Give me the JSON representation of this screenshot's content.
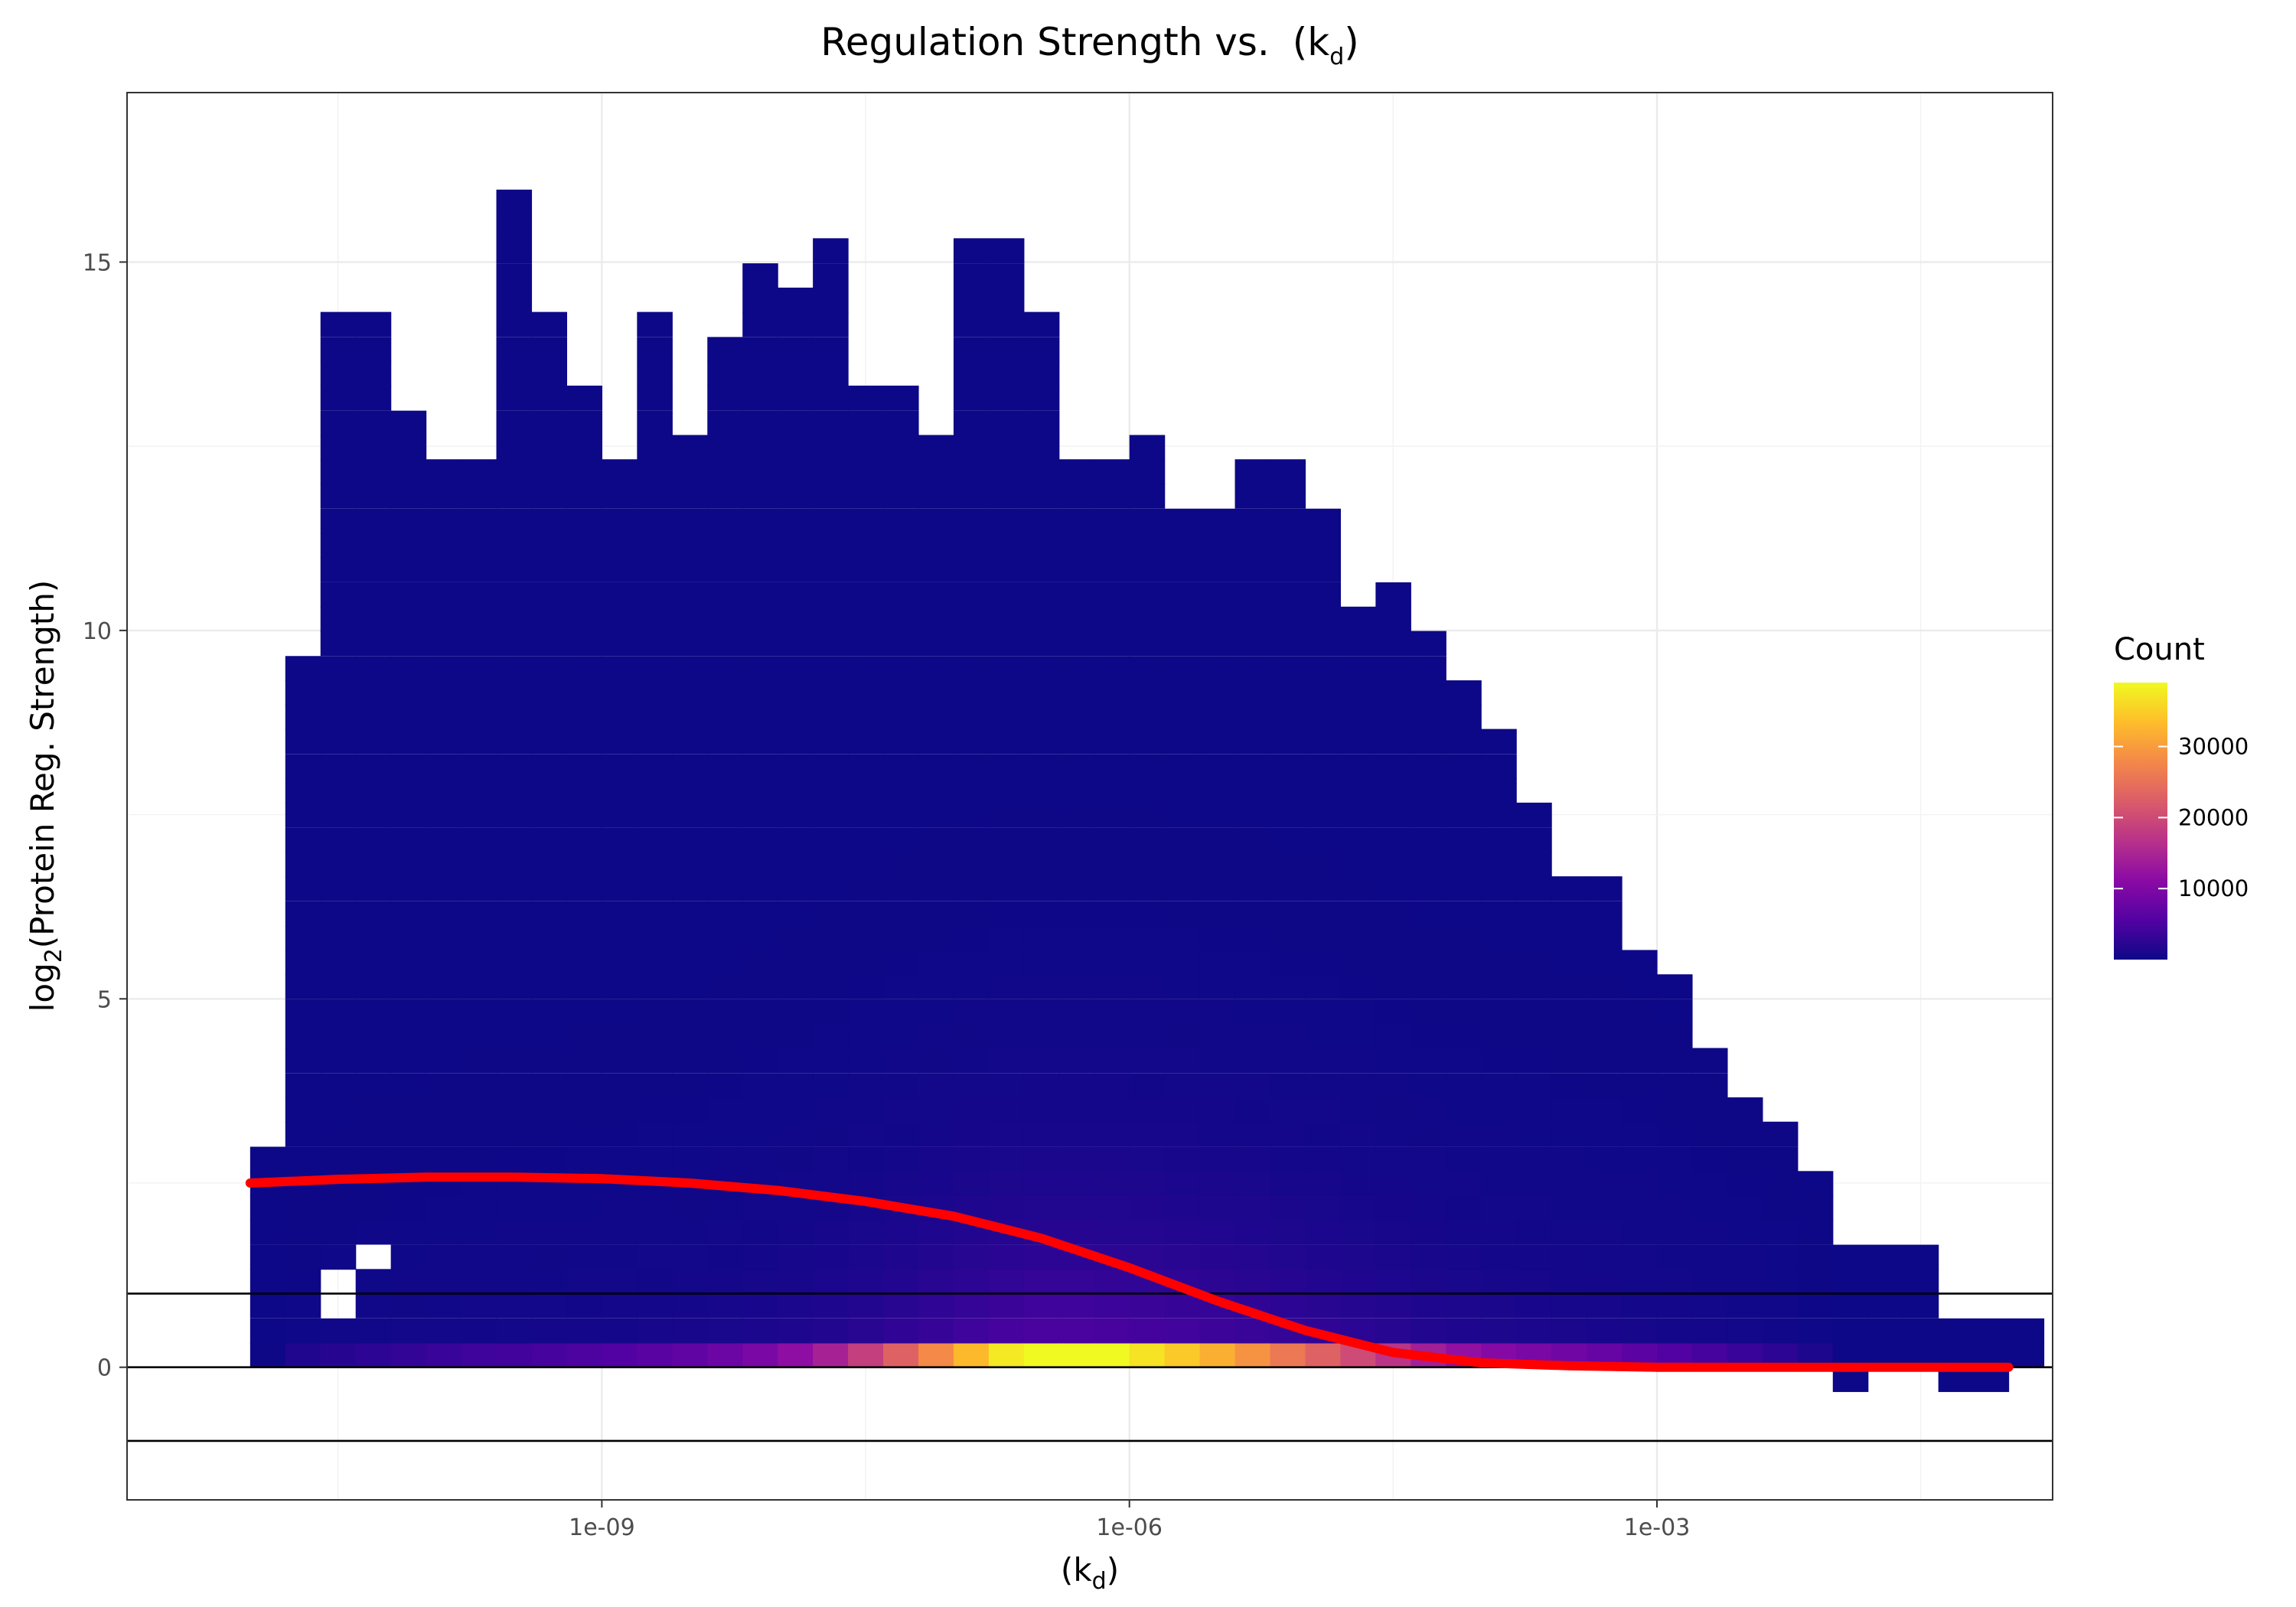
{
  "chart_data": {
    "type": "heatmap",
    "title": {
      "text": "Regulation Strength vs.",
      "sym": "k",
      "sub": "d"
    },
    "xlabel": {
      "sym": "k",
      "sub": "d"
    },
    "ylabel": {
      "pre": "log",
      "sub": "2",
      "post": "Protein Reg. Strength"
    },
    "x_scale": "log10",
    "x_ticks": [
      {
        "value": 1e-09,
        "label": "1e-09"
      },
      {
        "value": 1e-06,
        "label": "1e-06"
      },
      {
        "value": 0.001,
        "label": "1e-03"
      }
    ],
    "y_ticks": [
      {
        "value": 0,
        "label": "0"
      },
      {
        "value": 5,
        "label": "5"
      },
      {
        "value": 10,
        "label": "10"
      },
      {
        "value": 15,
        "label": "15"
      }
    ],
    "xlim_log10": [
      -11.7,
      -0.75
    ],
    "ylim": [
      -1.8,
      17.3
    ],
    "grid": true,
    "bins": {
      "x_start_log10": -11.0,
      "x_width_log10": 0.2,
      "y_start": 0.0,
      "y_height": 0.333
    },
    "column_max_y": [
      3.0,
      9.67,
      14.33,
      14.33,
      13.0,
      12.33,
      12.33,
      16.0,
      14.33,
      13.33,
      12.33,
      14.33,
      12.67,
      14.0,
      15.0,
      14.67,
      15.33,
      13.33,
      13.33,
      12.67,
      15.33,
      15.33,
      14.33,
      12.33,
      12.33,
      12.67,
      11.67,
      11.67,
      12.33,
      12.33,
      11.67,
      10.33,
      10.67,
      10.0,
      9.33,
      8.67,
      7.67,
      6.67,
      6.67,
      5.67,
      5.33,
      4.33,
      3.67,
      3.33,
      2.67,
      1.67,
      1.67,
      1.67,
      0.67,
      0.67,
      0.67
    ],
    "column_count_scale": [
      0.05,
      1.5,
      2,
      2.5,
      3,
      3.5,
      3.9,
      4.2,
      4.6,
      5,
      5.5,
      6.2,
      7,
      8,
      9.5,
      11.5,
      14.5,
      18.5,
      23,
      28,
      33,
      37.5,
      40.5,
      40.5,
      39,
      37,
      34.5,
      32,
      29,
      26,
      23,
      20,
      17,
      14,
      12,
      10.5,
      9.5,
      8.5,
      7.5,
      6.5,
      5.5,
      4.5,
      3.5,
      2.5,
      1.2
    ],
    "low_count_row_cells": [
      [
        -9.8,
        -2.8
      ],
      [
        -9.4,
        -2.8
      ]
    ],
    "negative_cells": [
      [
        -2.0,
        -0.33
      ],
      [
        -1.4,
        -0.33
      ],
      [
        -1.2,
        -0.33
      ]
    ],
    "holes": [
      [
        -10.6,
        1.0
      ],
      [
        -10.4,
        1.33
      ],
      [
        -10.6,
        0.67
      ],
      [
        -9.8,
        12.33
      ],
      [
        -9.6,
        12.33
      ],
      [
        -8.0,
        11.67
      ],
      [
        -7.8,
        11.67
      ]
    ],
    "colorbar": {
      "title": "Count",
      "min": 1,
      "max": 39000,
      "ticks": [
        {
          "value": 10000,
          "label": "10000"
        },
        {
          "value": 20000,
          "label": "20000"
        },
        {
          "value": 30000,
          "label": "30000"
        }
      ],
      "colors": [
        "#0d0887",
        "#5302a3",
        "#8b0aa5",
        "#b83289",
        "#db5c68",
        "#f48849",
        "#febd2a",
        "#f0f921"
      ]
    },
    "hlines": [
      -1,
      0,
      1
    ],
    "smooth_fit": {
      "color": "#ff0000",
      "x_log10": [
        -11.0,
        -10.5,
        -10.0,
        -9.5,
        -9.0,
        -8.5,
        -8.0,
        -7.5,
        -7.0,
        -6.5,
        -6.0,
        -5.5,
        -5.0,
        -4.5,
        -4.0,
        -3.5,
        -3.0,
        -2.5,
        -2.0,
        -1.5,
        -1.0
      ],
      "y": [
        2.5,
        2.55,
        2.58,
        2.58,
        2.56,
        2.5,
        2.4,
        2.25,
        2.05,
        1.75,
        1.35,
        0.9,
        0.5,
        0.2,
        0.06,
        0.02,
        0.0,
        0.0,
        0.0,
        0.0,
        0.0
      ]
    }
  }
}
